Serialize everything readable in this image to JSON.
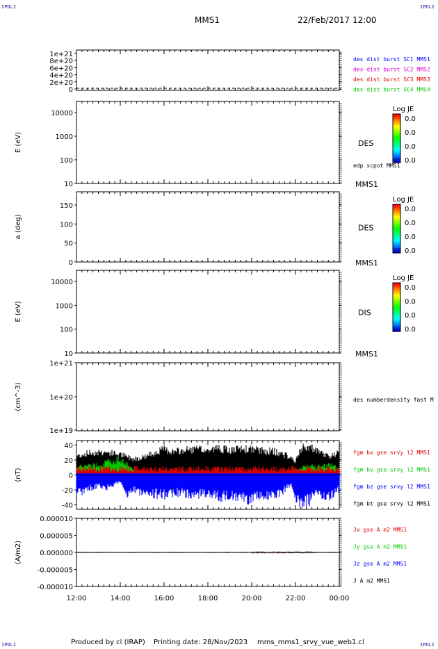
{
  "corner_label": "IPDLI",
  "header": {
    "spacecraft": "MMS1",
    "date": "22/Feb/2017 12:00"
  },
  "footer": {
    "produced_by": "Produced by cl (IRAP)",
    "printing_date": "Printing date: 28/Nov/2023",
    "filename": "mms_mms1_srvy_vue_web1.cl"
  },
  "colors": {
    "c1": "#0000ff",
    "c2": "#d400d4",
    "c3": "#e00000",
    "c4": "#00cc00",
    "black": "#000000"
  },
  "chart_data": [
    {
      "type": "line",
      "panel": "dist-burst",
      "yticks": [
        "1e+21",
        "8e+20",
        "6e+20",
        "4e+20",
        "2e+20",
        "0"
      ],
      "legend": [
        {
          "text": "des dist burst SC1 MMS1",
          "color": "#0000ff"
        },
        {
          "text": "des dist burst SC2 MMS2",
          "color": "#d400d4"
        },
        {
          "text": "des dist burst SC3 MMS3",
          "color": "#e00000"
        },
        {
          "text": "des dist burst SC4 MMS4",
          "color": "#00cc00"
        }
      ]
    },
    {
      "type": "heatmap",
      "panel": "des-energy",
      "ylabel": "E (eV)",
      "yticks": [
        "10000",
        "1000",
        "100",
        "10"
      ],
      "label": "DES",
      "sc_label": "MMS1",
      "overlay": "edp scpot MMS1",
      "colorbar": {
        "title": "Log JE",
        "ticks": [
          "0.0",
          "0.0",
          "0.0",
          "0.0"
        ]
      }
    },
    {
      "type": "heatmap",
      "panel": "des-pitch",
      "ylabel": "a (deg)",
      "yticks": [
        "150",
        "100",
        "50",
        "0"
      ],
      "label": "DES",
      "sc_label": "MMS1",
      "colorbar": {
        "title": "Log JE",
        "ticks": [
          "0.0",
          "0.0",
          "0.0",
          "0.0"
        ]
      }
    },
    {
      "type": "heatmap",
      "panel": "dis-energy",
      "ylabel": "E (eV)",
      "yticks": [
        "10000",
        "1000",
        "100",
        "10"
      ],
      "label": "DIS",
      "sc_label": "MMS1",
      "colorbar": {
        "title": "Log JE",
        "ticks": [
          "0.0",
          "0.0",
          "0.0",
          "0.0"
        ]
      }
    },
    {
      "type": "line",
      "panel": "density",
      "ylabel": "(cm^-3)",
      "yticks": [
        "1e+21",
        "1e+20",
        "1e+19"
      ],
      "legend_text": "des numberdensity fast M"
    },
    {
      "type": "line",
      "panel": "fgm",
      "ylabel": "(nT)",
      "yticks": [
        "40",
        "20",
        "0",
        "-20",
        "-40"
      ],
      "ylim": [
        -46,
        46
      ],
      "series": [
        {
          "name": "fgm bx gse srvy l2 MMS1",
          "color": "#e00000"
        },
        {
          "name": "fgm by gse srvy l2 MMS1",
          "color": "#00cc00"
        },
        {
          "name": "fgm bz gse srvy l2 MMS1",
          "color": "#0000ff"
        },
        {
          "name": "fgm bt gse srvy l2 MMS1",
          "color": "#000000"
        }
      ],
      "envelope": {
        "hours": [
          12.0,
          12.5,
          13.0,
          13.5,
          14.0,
          14.3,
          14.6,
          15.0,
          15.5,
          16.0,
          16.5,
          17.0,
          17.5,
          18.0,
          18.5,
          19.0,
          19.5,
          20.0,
          20.5,
          21.0,
          21.5,
          21.8,
          22.0,
          22.3,
          22.6,
          23.0,
          23.3,
          23.6,
          24.0
        ],
        "bt_top": [
          28,
          32,
          34,
          33,
          30,
          27,
          24,
          26,
          32,
          38,
          34,
          37,
          38,
          36,
          40,
          36,
          38,
          38,
          36,
          35,
          30,
          25,
          20,
          40,
          42,
          34,
          30,
          28,
          32
        ],
        "bz_bottom": [
          -30,
          -22,
          -18,
          -20,
          -10,
          -30,
          -25,
          -28,
          -30,
          -32,
          -28,
          -30,
          -32,
          -28,
          -35,
          -34,
          -38,
          -40,
          -32,
          -34,
          -24,
          -16,
          -40,
          -44,
          -42,
          -30,
          -34,
          -36,
          -22
        ],
        "by_top": [
          12,
          14,
          16,
          20,
          24,
          18,
          8,
          4,
          2,
          3,
          4,
          3,
          2,
          4,
          3,
          3,
          2,
          2,
          3,
          2,
          3,
          5,
          8,
          10,
          16,
          12,
          14,
          16,
          10
        ]
      }
    },
    {
      "type": "line",
      "panel": "current",
      "ylabel": "(A/m2)",
      "yticks": [
        "0.000010",
        "0.000005",
        "0.000000",
        "-0.000005",
        "-0.000010"
      ],
      "ylim": [
        -1e-05,
        1e-05
      ],
      "series": [
        {
          "name": "Jx gse A m2 MMS1",
          "color": "#e00000"
        },
        {
          "name": "Jy gse A m2 MMS1",
          "color": "#00cc00"
        },
        {
          "name": "Jz gse A m2 MMS1",
          "color": "#0000ff"
        },
        {
          "name": "J A m2 MMS1",
          "color": "#000000"
        }
      ]
    }
  ],
  "time_axis": {
    "ticks": [
      "12:00",
      "14:00",
      "16:00",
      "18:00",
      "20:00",
      "22:00",
      "00:00"
    ]
  }
}
